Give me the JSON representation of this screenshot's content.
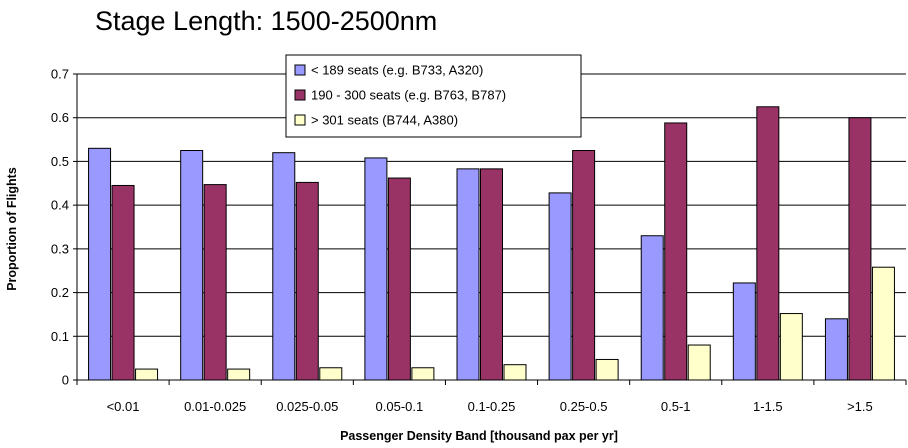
{
  "chart_data": {
    "type": "bar",
    "title": "Stage Length: 1500-2500nm",
    "xlabel": "Passenger Density Band [thousand pax per yr]",
    "ylabel": "Proportion of Flights",
    "ylim": [
      0,
      0.7
    ],
    "yticks": [
      "0",
      "0.1",
      "0.2",
      "0.3",
      "0.4",
      "0.5",
      "0.6",
      "0.7"
    ],
    "grid": true,
    "legend_position": "top-center",
    "categories": [
      "<0.01",
      "0.01-0.025",
      "0.025-0.05",
      "0.05-0.1",
      "0.1-0.25",
      "0.25-0.5",
      "0.5-1",
      "1-1.5",
      ">1.5"
    ],
    "series": [
      {
        "name": "< 189 seats (e.g. B733, A320)",
        "color": "#9999ff",
        "values": [
          0.53,
          0.525,
          0.52,
          0.508,
          0.483,
          0.428,
          0.33,
          0.222,
          0.14
        ]
      },
      {
        "name": "190 - 300 seats (e.g. B763, B787)",
        "color": "#993366",
        "values": [
          0.445,
          0.447,
          0.452,
          0.462,
          0.483,
          0.525,
          0.588,
          0.625,
          0.6
        ]
      },
      {
        "name": "> 301 seats (B744, A380)",
        "color": "#ffffcc",
        "values": [
          0.025,
          0.025,
          0.028,
          0.028,
          0.035,
          0.047,
          0.08,
          0.152,
          0.258
        ]
      }
    ]
  }
}
